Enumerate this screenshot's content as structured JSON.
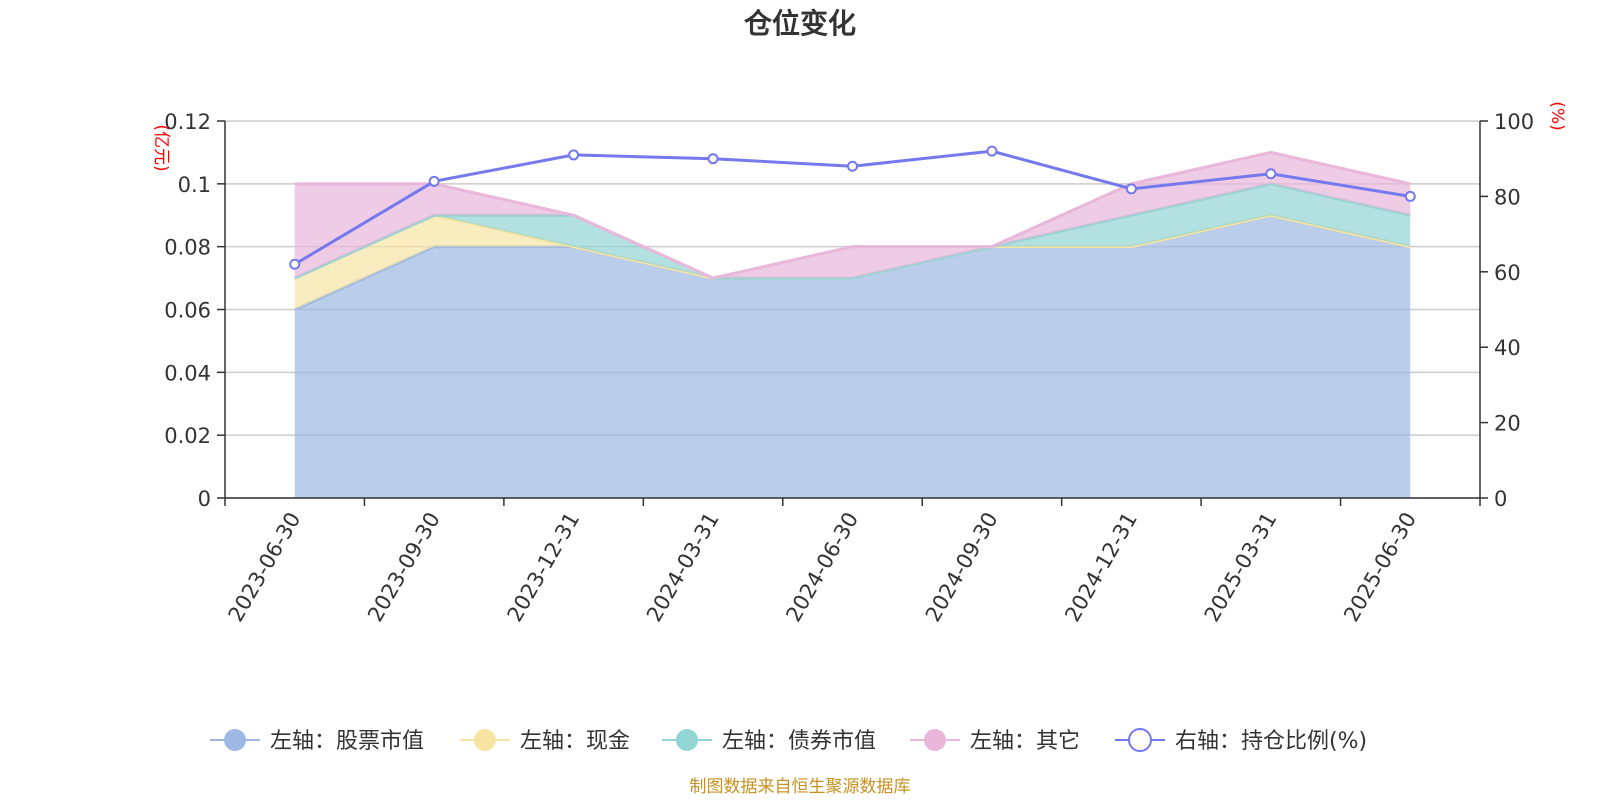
{
  "chart_data": {
    "type": "area",
    "title": "仓位变化",
    "left_axis": {
      "unit": "(亿元)",
      "ylim": [
        0,
        0.12
      ],
      "ticks": [
        "0",
        "0.02",
        "0.04",
        "0.06",
        "0.08",
        "0.1",
        "0.12"
      ]
    },
    "right_axis": {
      "unit": "(%)",
      "ylim": [
        0,
        100
      ],
      "ticks": [
        "0",
        "20",
        "40",
        "60",
        "80",
        "100"
      ]
    },
    "categories": [
      "2023-06-30",
      "2023-09-30",
      "2023-12-31",
      "2024-03-31",
      "2024-06-30",
      "2024-09-30",
      "2024-12-31",
      "2025-03-31",
      "2025-06-30"
    ],
    "stacked_series": [
      {
        "name": "左轴：股票市值",
        "color": "#9db8e2",
        "values": [
          0.06,
          0.08,
          0.08,
          0.07,
          0.07,
          0.08,
          0.08,
          0.09,
          0.08
        ]
      },
      {
        "name": "左轴：现金",
        "color": "#f7e4a2",
        "values": [
          0.01,
          0.01,
          0.0,
          0.0,
          0.0,
          0.0,
          0.0,
          0.0,
          0.0
        ]
      },
      {
        "name": "左轴：债券市值",
        "color": "#93d4d4",
        "values": [
          0.0,
          0.0,
          0.01,
          0.0,
          0.0,
          0.0,
          0.01,
          0.01,
          0.01
        ]
      },
      {
        "name": "左轴：其它",
        "color": "#e8b7da",
        "values": [
          0.03,
          0.01,
          0.0,
          0.0,
          0.01,
          0.0,
          0.01,
          0.01,
          0.01
        ]
      }
    ],
    "line_series": {
      "name": "右轴：持仓比例(%)",
      "color": "#7479ee",
      "axis": "right",
      "values": [
        62,
        84,
        91,
        90,
        88,
        92,
        82,
        86,
        80
      ]
    },
    "grid": true,
    "legend_position": "bottom"
  },
  "source": "制图数据来自恒生聚源数据库"
}
